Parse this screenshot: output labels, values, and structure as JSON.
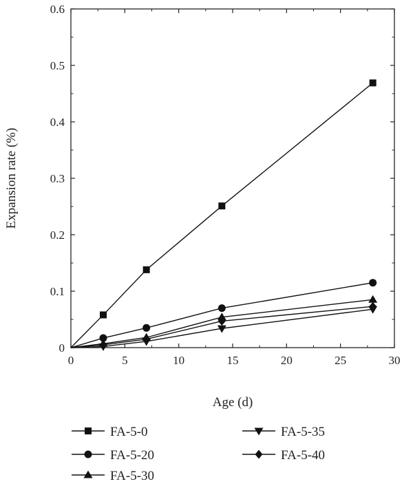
{
  "chart_data": {
    "type": "line",
    "xlabel": "Age (d)",
    "ylabel": "Expansion rate (%)",
    "xlim": [
      0,
      30
    ],
    "ylim": [
      0,
      0.6
    ],
    "xticks": [
      0,
      5,
      10,
      15,
      20,
      25,
      30
    ],
    "yticks": [
      0,
      0.1,
      0.2,
      0.3,
      0.4,
      0.5,
      0.6
    ],
    "x": [
      0,
      3,
      7,
      14,
      28
    ],
    "grid": false,
    "legend_position": "bottom",
    "series": [
      {
        "name": "FA-5-0",
        "marker": "square",
        "values": [
          0,
          0.058,
          0.138,
          0.251,
          0.469
        ]
      },
      {
        "name": "FA-5-20",
        "marker": "circle",
        "values": [
          0,
          0.017,
          0.035,
          0.07,
          0.115
        ]
      },
      {
        "name": "FA-5-30",
        "marker": "triangle-up",
        "values": [
          0,
          0.007,
          0.018,
          0.054,
          0.085
        ]
      },
      {
        "name": "FA-5-35",
        "marker": "triangle-down",
        "values": [
          0,
          0.002,
          0.011,
          0.034,
          0.068
        ]
      },
      {
        "name": "FA-5-40",
        "marker": "diamond",
        "values": [
          0,
          0.005,
          0.015,
          0.047,
          0.073
        ]
      }
    ]
  }
}
